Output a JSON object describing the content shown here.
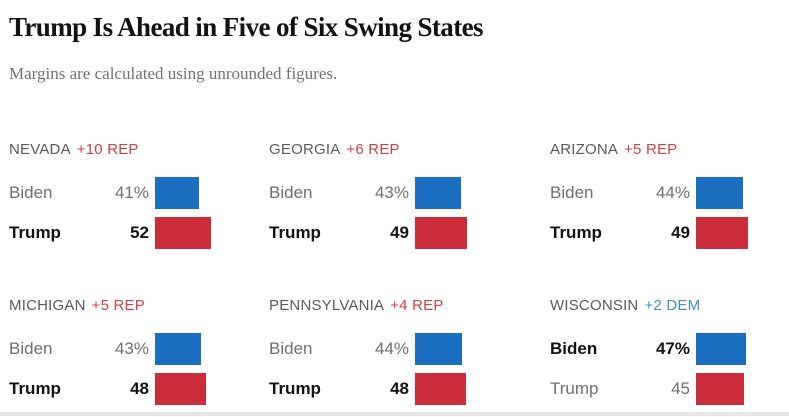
{
  "title": "Trump Is Ahead in Five of Six Swing States",
  "subtitle": "Margins are calculated using unrounded figures.",
  "colors": {
    "biden": "#1a6fc1",
    "trump": "#cc2d3a",
    "rep_margin": "#c9424a",
    "dem_margin": "#3e8fc7"
  },
  "chart_data": {
    "type": "bar",
    "title": "Trump Is Ahead in Five of Six Swing States",
    "subtitle": "Margins are calculated using unrounded figures.",
    "xlabel": "",
    "ylabel": "",
    "grid": false,
    "series_names": [
      "Biden",
      "Trump"
    ],
    "panels": [
      {
        "state": "NEVADA",
        "margin": "+10 REP",
        "margin_party": "rep",
        "rows": [
          {
            "candidate": "Biden",
            "value": 41,
            "label": "41%",
            "leader": false
          },
          {
            "candidate": "Trump",
            "value": 52,
            "label": "52",
            "leader": true
          }
        ]
      },
      {
        "state": "GEORGIA",
        "margin": "+6 REP",
        "margin_party": "rep",
        "rows": [
          {
            "candidate": "Biden",
            "value": 43,
            "label": "43%",
            "leader": false
          },
          {
            "candidate": "Trump",
            "value": 49,
            "label": "49",
            "leader": true
          }
        ]
      },
      {
        "state": "ARIZONA",
        "margin": "+5 REP",
        "margin_party": "rep",
        "rows": [
          {
            "candidate": "Biden",
            "value": 44,
            "label": "44%",
            "leader": false
          },
          {
            "candidate": "Trump",
            "value": 49,
            "label": "49",
            "leader": true
          }
        ]
      },
      {
        "state": "MICHIGAN",
        "margin": "+5 REP",
        "margin_party": "rep",
        "rows": [
          {
            "candidate": "Biden",
            "value": 43,
            "label": "43%",
            "leader": false
          },
          {
            "candidate": "Trump",
            "value": 48,
            "label": "48",
            "leader": true
          }
        ]
      },
      {
        "state": "PENNSYLVANIA",
        "margin": "+4 REP",
        "margin_party": "rep",
        "rows": [
          {
            "candidate": "Biden",
            "value": 44,
            "label": "44%",
            "leader": false
          },
          {
            "candidate": "Trump",
            "value": 48,
            "label": "48",
            "leader": true
          }
        ]
      },
      {
        "state": "WISCONSIN",
        "margin": "+2 DEM",
        "margin_party": "dem",
        "rows": [
          {
            "candidate": "Biden",
            "value": 47,
            "label": "47%",
            "leader": true
          },
          {
            "candidate": "Trump",
            "value": 45,
            "label": "45",
            "leader": false
          }
        ]
      }
    ]
  }
}
